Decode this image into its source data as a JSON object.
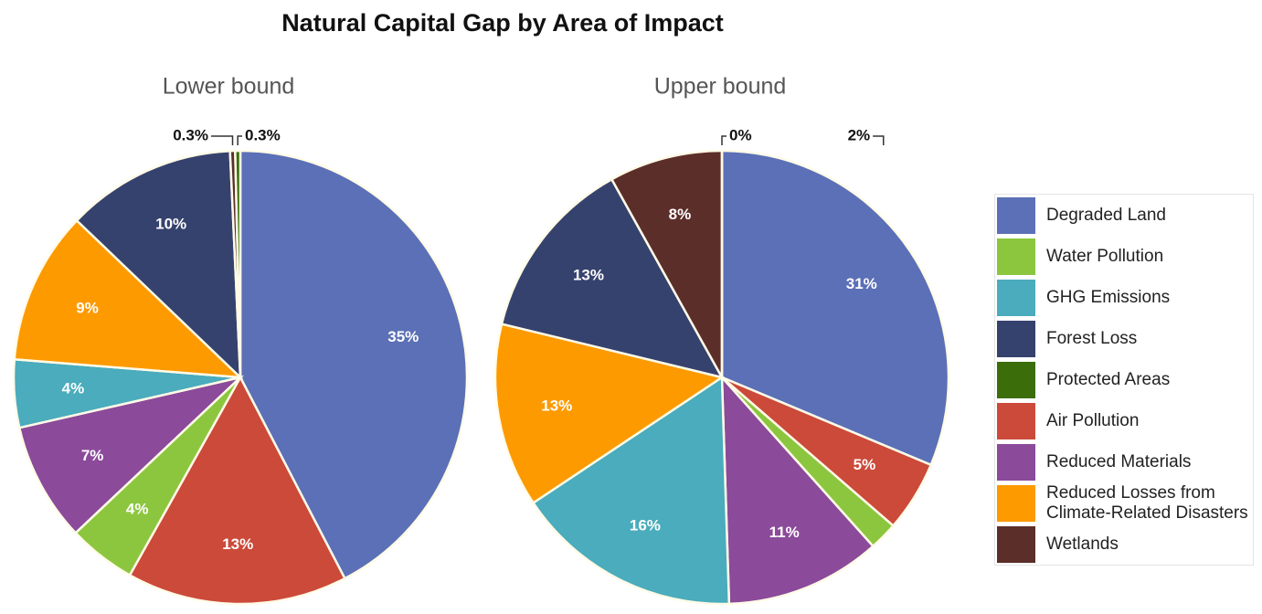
{
  "title": "Natural Capital Gap by Area of Impact",
  "legend": {
    "labels": [
      "Degraded Land",
      "Water Pollution",
      "GHG Emissions",
      "Forest Loss",
      "Protected Areas",
      "Air Pollution",
      "Reduced Materials",
      "Reduced Losses from Climate-Related Disasters",
      "Wetlands"
    ],
    "colors": [
      "#5b70b6",
      "#8cc63f",
      "#4aacbc",
      "#36426e",
      "#3b6e0a",
      "#cc4a3a",
      "#8b4a9a",
      "#fd9a00",
      "#5c2e2a"
    ]
  },
  "chart_data": [
    {
      "type": "pie",
      "subtitle": "Lower bound",
      "categories": [
        "Degraded Land",
        "Air Pollution",
        "Water Pollution",
        "Reduced Materials",
        "GHG Emissions",
        "Reduced Losses from Climate-Related Disasters",
        "Forest Loss",
        "Wetlands",
        "Protected Areas"
      ],
      "values": [
        35,
        13,
        4,
        7,
        4,
        9,
        10,
        0.3,
        0.3
      ],
      "value_labels": [
        "35%",
        "13%",
        "4%",
        "7%",
        "4%",
        "9%",
        "10%",
        "0.3%",
        "0.3%"
      ]
    },
    {
      "type": "pie",
      "subtitle": "Upper bound",
      "categories": [
        "Degraded Land",
        "Air Pollution",
        "Water Pollution",
        "Reduced Materials",
        "GHG Emissions",
        "Reduced Losses from Climate-Related Disasters",
        "Forest Loss",
        "Wetlands",
        "Protected Areas"
      ],
      "values": [
        31,
        5,
        2,
        11,
        16,
        13,
        13,
        8,
        0
      ],
      "value_labels": [
        "31%",
        "5%",
        "2%",
        "11%",
        "16%",
        "13%",
        "13%",
        "8%",
        "0%"
      ]
    }
  ]
}
